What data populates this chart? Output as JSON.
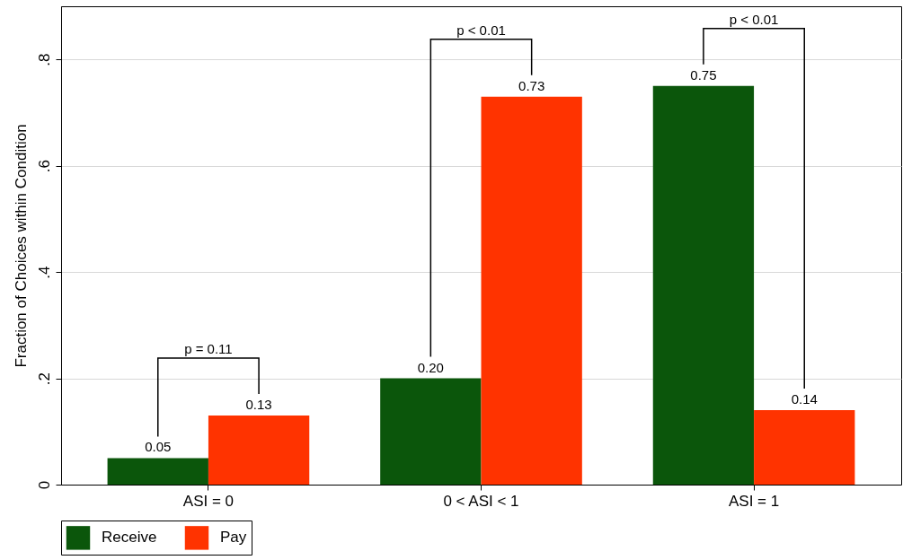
{
  "chart_data": {
    "type": "bar",
    "ylabel": "Fraction of Choices within Condition",
    "categories": [
      "ASI = 0",
      "0 < ASI < 1",
      "ASI = 1"
    ],
    "series": [
      {
        "name": "Receive",
        "color": "#0b560b",
        "values": [
          0.05,
          0.2,
          0.75
        ],
        "value_labels": [
          "0.05",
          "0.20",
          "0.75"
        ]
      },
      {
        "name": "Pay",
        "color": "#ff3300",
        "values": [
          0.13,
          0.73,
          0.14
        ],
        "value_labels": [
          "0.13",
          "0.73",
          "0.14"
        ]
      }
    ],
    "ylim": [
      0,
      0.9
    ],
    "yticks": [
      {
        "value": 0,
        "label": "0"
      },
      {
        "value": 0.2,
        "label": ".2"
      },
      {
        "value": 0.4,
        "label": ".4"
      },
      {
        "value": 0.6,
        "label": ".6"
      },
      {
        "value": 0.8,
        "label": ".8"
      }
    ],
    "grid": "y",
    "legend": "bottom",
    "annotations": [
      "p = 0.11",
      "p < 0.01",
      "p < 0.01"
    ]
  }
}
